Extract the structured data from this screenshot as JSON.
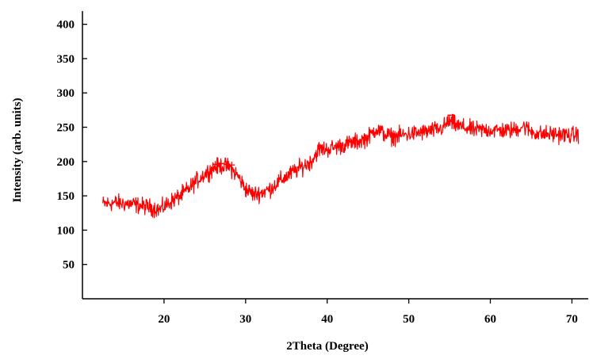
{
  "chart_data": {
    "type": "line",
    "title": "",
    "xlabel": "2Theta (Degree)",
    "ylabel": "Intensity (arb. units)",
    "xlim": [
      10,
      72
    ],
    "ylim": [
      0,
      410
    ],
    "x_ticks": [
      20,
      30,
      40,
      50,
      60,
      70
    ],
    "y_ticks": [
      50,
      100,
      150,
      200,
      250,
      300,
      350,
      400
    ],
    "x_tick_labels": [
      "20",
      "30",
      "40",
      "50",
      "60",
      "70"
    ],
    "y_tick_labels": [
      "50",
      "100",
      "150",
      "200",
      "250",
      "300",
      "350",
      "400"
    ],
    "grid": false,
    "legend": "none",
    "series": [
      {
        "color": "#ff0000",
        "x_start": 12.5,
        "x_end": 70.8,
        "x_step": 0.05,
        "noise_amplitude": 10,
        "trend": [
          [
            12.5,
            138
          ],
          [
            14,
            140
          ],
          [
            16,
            138
          ],
          [
            18,
            134
          ],
          [
            19.5,
            130
          ],
          [
            21,
            143
          ],
          [
            22,
            150
          ],
          [
            23,
            160
          ],
          [
            24,
            172
          ],
          [
            25,
            182
          ],
          [
            26,
            190
          ],
          [
            27,
            194
          ],
          [
            28,
            192
          ],
          [
            29,
            180
          ],
          [
            30,
            160
          ],
          [
            31,
            152
          ],
          [
            32,
            155
          ],
          [
            33,
            160
          ],
          [
            34,
            170
          ],
          [
            35,
            178
          ],
          [
            36,
            186
          ],
          [
            37,
            193
          ],
          [
            38,
            200
          ],
          [
            39,
            218
          ],
          [
            40,
            218
          ],
          [
            42,
            224
          ],
          [
            44,
            230
          ],
          [
            45,
            235
          ],
          [
            46,
            248
          ],
          [
            47,
            240
          ],
          [
            48,
            236
          ],
          [
            49,
            238
          ],
          [
            50,
            240
          ],
          [
            52,
            243
          ],
          [
            54,
            248
          ],
          [
            55,
            258
          ],
          [
            56,
            252
          ],
          [
            58,
            246
          ],
          [
            60,
            246
          ],
          [
            62,
            245
          ],
          [
            63,
            246
          ],
          [
            64,
            252
          ],
          [
            65,
            244
          ],
          [
            66,
            240
          ],
          [
            68,
            240
          ],
          [
            70,
            238
          ],
          [
            70.8,
            240
          ]
        ]
      }
    ],
    "markers": [
      {
        "shape": "square",
        "x": 55.2,
        "y": 263,
        "color": "#ff0000"
      },
      {
        "shape": "cross",
        "x": 26.3,
        "y": 196,
        "color": "#ff0000"
      },
      {
        "shape": "cross",
        "x": 27.0,
        "y": 197,
        "color": "#ff0000"
      },
      {
        "shape": "cross",
        "x": 27.7,
        "y": 196,
        "color": "#ff0000"
      },
      {
        "shape": "cross",
        "x": 28.3,
        "y": 195,
        "color": "#ff0000"
      }
    ]
  }
}
